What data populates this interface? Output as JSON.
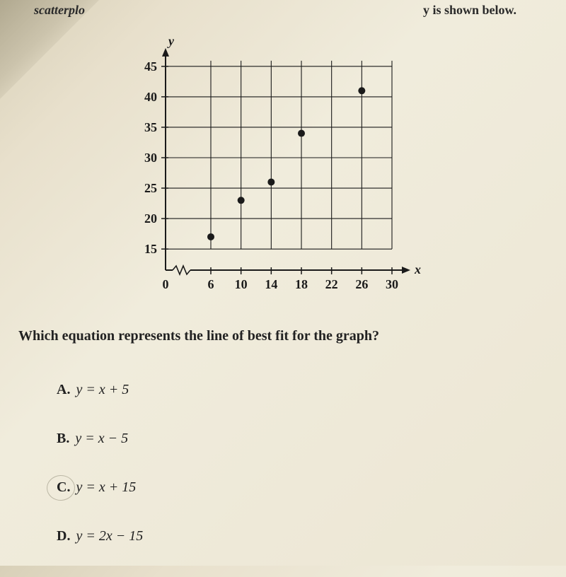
{
  "header": {
    "left_fragment": "scatterplo",
    "right_fragment": "y is shown below."
  },
  "chart": {
    "type": "scatter",
    "y_axis_label": "y",
    "x_axis_label": "x",
    "x_ticks": [
      0,
      6,
      10,
      14,
      18,
      22,
      26,
      30
    ],
    "y_ticks": [
      15,
      20,
      25,
      30,
      35,
      40,
      45
    ],
    "xlim": [
      0,
      30
    ],
    "ylim": [
      12,
      48
    ],
    "points": [
      {
        "x": 6,
        "y": 17
      },
      {
        "x": 10,
        "y": 23
      },
      {
        "x": 14,
        "y": 26
      },
      {
        "x": 18,
        "y": 34
      },
      {
        "x": 26,
        "y": 41
      }
    ],
    "grid_color": "#1a1a1a",
    "grid_width": 1.1,
    "point_color": "#1a1a1a",
    "point_radius": 5,
    "tick_fontsize": 18,
    "axis_label_fontsize": 18,
    "axis_break_on_x": true
  },
  "question": "Which equation represents the line of best fit for the graph?",
  "choices": [
    {
      "letter": "A.",
      "equation": "y = x + 5",
      "circled": false
    },
    {
      "letter": "B.",
      "equation": "y = x − 5",
      "circled": false
    },
    {
      "letter": "C.",
      "equation": "y = x + 15",
      "circled": true
    },
    {
      "letter": "D.",
      "equation": "y = 2x − 15",
      "circled": false
    }
  ]
}
